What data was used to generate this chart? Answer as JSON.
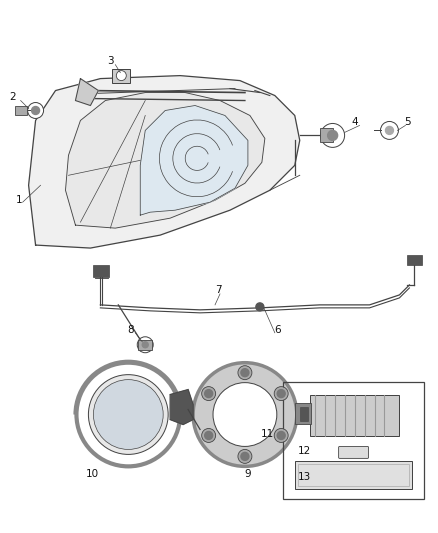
{
  "bg_color": "#ffffff",
  "fig_width": 4.38,
  "fig_height": 5.33,
  "dpi": 100,
  "line_color": "#444444",
  "label_fontsize": 7.5
}
